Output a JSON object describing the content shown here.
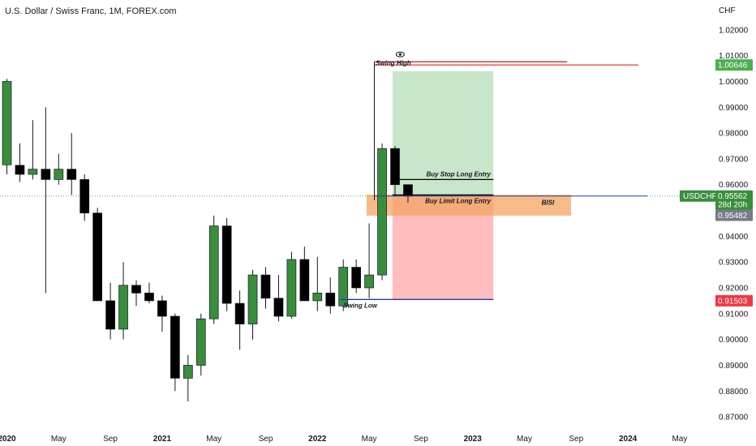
{
  "header": {
    "title": "U.S. Dollar / Swiss Franc, 1M, FOREX.com",
    "currency": "CHF"
  },
  "chart_data": {
    "type": "candlestick",
    "symbol": "USDCHF",
    "timeframe": "1M",
    "ylim": [
      0.865,
      1.03
    ],
    "y_ticks": [
      "1.02000",
      "1.01000",
      "1.00000",
      "0.99000",
      "0.98000",
      "0.97000",
      "0.96000",
      "0.95000",
      "0.94000",
      "0.93000",
      "0.92000",
      "0.91000",
      "0.90000",
      "0.89000",
      "0.88000",
      "0.87000"
    ],
    "x_ticks": [
      {
        "label": "2020",
        "index": 0,
        "bold": true
      },
      {
        "label": "May",
        "index": 4,
        "bold": false
      },
      {
        "label": "Sep",
        "index": 8,
        "bold": false
      },
      {
        "label": "2021",
        "index": 12,
        "bold": true
      },
      {
        "label": "May",
        "index": 16,
        "bold": false
      },
      {
        "label": "Sep",
        "index": 20,
        "bold": false
      },
      {
        "label": "2022",
        "index": 24,
        "bold": true
      },
      {
        "label": "May",
        "index": 28,
        "bold": false
      },
      {
        "label": "Sep",
        "index": 32,
        "bold": false
      },
      {
        "label": "2023",
        "index": 36,
        "bold": true
      },
      {
        "label": "May",
        "index": 40,
        "bold": false
      },
      {
        "label": "Sep",
        "index": 44,
        "bold": false
      },
      {
        "label": "2024",
        "index": 48,
        "bold": true
      },
      {
        "label": "May",
        "index": 52,
        "bold": false
      }
    ],
    "candles": [
      {
        "o": 0.9677,
        "h": 1.001,
        "l": 0.964,
        "c": 1.0
      },
      {
        "o": 0.9675,
        "h": 0.976,
        "l": 0.961,
        "c": 0.964
      },
      {
        "o": 0.964,
        "h": 0.985,
        "l": 0.962,
        "c": 0.966
      },
      {
        "o": 0.966,
        "h": 0.99,
        "l": 0.918,
        "c": 0.962
      },
      {
        "o": 0.962,
        "h": 0.972,
        "l": 0.96,
        "c": 0.966
      },
      {
        "o": 0.966,
        "h": 0.98,
        "l": 0.956,
        "c": 0.962
      },
      {
        "o": 0.962,
        "h": 0.964,
        "l": 0.946,
        "c": 0.949
      },
      {
        "o": 0.949,
        "h": 0.951,
        "l": 0.915,
        "c": 0.915
      },
      {
        "o": 0.915,
        "h": 0.922,
        "l": 0.9,
        "c": 0.904
      },
      {
        "o": 0.904,
        "h": 0.93,
        "l": 0.9,
        "c": 0.921
      },
      {
        "o": 0.921,
        "h": 0.923,
        "l": 0.913,
        "c": 0.918
      },
      {
        "o": 0.918,
        "h": 0.922,
        "l": 0.914,
        "c": 0.915
      },
      {
        "o": 0.915,
        "h": 0.917,
        "l": 0.903,
        "c": 0.909
      },
      {
        "o": 0.909,
        "h": 0.91,
        "l": 0.88,
        "c": 0.885
      },
      {
        "o": 0.885,
        "h": 0.894,
        "l": 0.876,
        "c": 0.89
      },
      {
        "o": 0.89,
        "h": 0.91,
        "l": 0.886,
        "c": 0.908
      },
      {
        "o": 0.908,
        "h": 0.948,
        "l": 0.906,
        "c": 0.944
      },
      {
        "o": 0.944,
        "h": 0.947,
        "l": 0.911,
        "c": 0.914
      },
      {
        "o": 0.914,
        "h": 0.919,
        "l": 0.896,
        "c": 0.906
      },
      {
        "o": 0.906,
        "h": 0.927,
        "l": 0.9,
        "c": 0.925
      },
      {
        "o": 0.925,
        "h": 0.928,
        "l": 0.912,
        "c": 0.916
      },
      {
        "o": 0.916,
        "h": 0.925,
        "l": 0.907,
        "c": 0.909
      },
      {
        "o": 0.909,
        "h": 0.934,
        "l": 0.908,
        "c": 0.931
      },
      {
        "o": 0.931,
        "h": 0.936,
        "l": 0.915,
        "c": 0.915
      },
      {
        "o": 0.915,
        "h": 0.932,
        "l": 0.911,
        "c": 0.918
      },
      {
        "o": 0.918,
        "h": 0.924,
        "l": 0.91,
        "c": 0.913
      },
      {
        "o": 0.913,
        "h": 0.931,
        "l": 0.911,
        "c": 0.928
      },
      {
        "o": 0.928,
        "h": 0.931,
        "l": 0.918,
        "c": 0.92
      },
      {
        "o": 0.92,
        "h": 0.945,
        "l": 0.916,
        "c": 0.925
      },
      {
        "o": 0.925,
        "h": 0.976,
        "l": 0.923,
        "c": 0.974
      },
      {
        "o": 0.974,
        "h": 0.975,
        "l": 0.9555,
        "c": 0.96
      },
      {
        "o": 0.96,
        "h": 0.96,
        "l": 0.953,
        "c": 0.9556
      }
    ],
    "colors": {
      "up": "#388e3c",
      "down": "#000000",
      "wick": "#131722"
    },
    "zones": [
      {
        "name": "BISI",
        "from_index": 27.8,
        "to_index": 43.6,
        "top": 0.9561,
        "bottom": 0.948,
        "color": "#f4a460"
      }
    ],
    "position": {
      "from_index": 29.8,
      "to_index": 37.6,
      "entry": 0.956,
      "target": 1.004,
      "stop": 0.9155,
      "profit_color": "#c8e6c9",
      "loss_color": "#ffbdbd"
    },
    "levels": [
      {
        "name": "swing-high-line",
        "price": 1.0064,
        "from_index": 28.4,
        "to_index": 48.8,
        "color": "#e53935",
        "label": "Swing High"
      },
      {
        "name": "buy-stop-line",
        "price": 0.962,
        "from_index": 29.8,
        "to_index": 37.6,
        "color": "#000000",
        "label": "Buy Stop Long Entry"
      },
      {
        "name": "buy-limit-line",
        "price": 0.956,
        "from_index": 29.8,
        "to_index": 37.6,
        "color": "#000000",
        "label": "Buy Limit Long Entry"
      },
      {
        "name": "swing-low-line",
        "price": 0.9155,
        "from_index": 25.8,
        "to_index": 37.6,
        "color": "#1e40af",
        "label": "Swing Low"
      }
    ],
    "zone_label": "BISI",
    "price_tags": [
      {
        "name": "tag-swing-high",
        "price": 1.0064,
        "text": "1.00646",
        "bg": "#4caf50"
      },
      {
        "name": "tag-symbol",
        "price": 0.9556,
        "text": "0.95562",
        "sub": "28d 20h",
        "symbol": "USDCHF",
        "bg": "#388e3c"
      },
      {
        "name": "tag-bisi",
        "price": 0.95,
        "text": "0.95482",
        "bg": "#787b86"
      },
      {
        "name": "tag-swing-low",
        "price": 0.915,
        "text": "0.91503",
        "bg": "#f23645"
      }
    ]
  }
}
